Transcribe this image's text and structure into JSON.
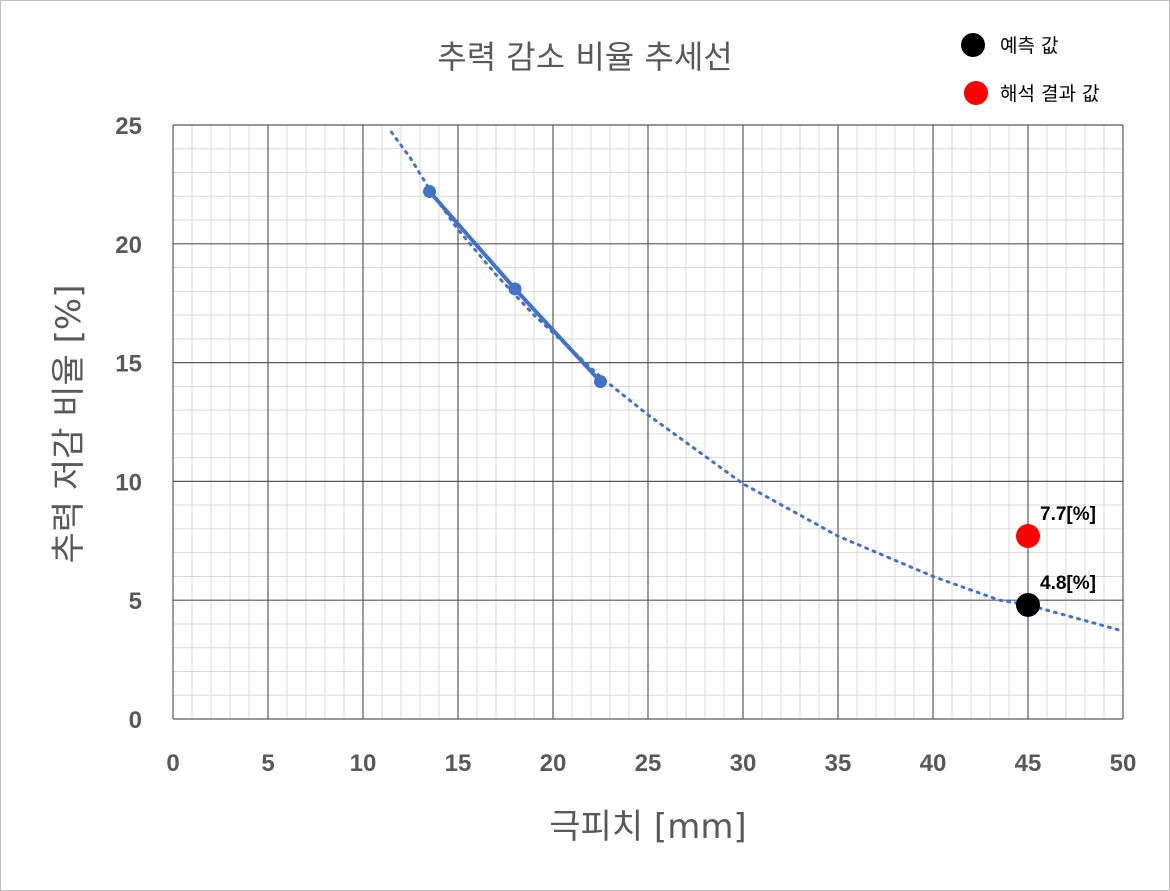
{
  "chart_data": {
    "type": "scatter",
    "title": "추력 감소 비율 추세선",
    "xlabel": "극피치 [mm]",
    "ylabel": "추력 저감 비율 [%]",
    "xlim": [
      0,
      50
    ],
    "ylim": [
      0,
      25
    ],
    "x_ticks": [
      0,
      5,
      10,
      15,
      20,
      25,
      30,
      35,
      40,
      45,
      50
    ],
    "y_ticks": [
      0,
      5,
      10,
      15,
      20,
      25
    ],
    "grid": true,
    "legend_position": "top-right",
    "series": [
      {
        "style": "line-markers",
        "color": "#4472c4",
        "x": [
          13.5,
          18,
          22.5
        ],
        "y": [
          22.2,
          18.1,
          14.2
        ]
      },
      {
        "style": "dotted-trendline",
        "color": "#4472c4",
        "x": [
          11.5,
          12.5,
          13.5,
          15,
          17,
          19,
          22.5,
          25,
          30,
          35,
          40,
          43.5,
          45,
          50
        ],
        "y": [
          24.7,
          23.6,
          22.3,
          20.6,
          18.7,
          17.0,
          14.4,
          12.8,
          9.9,
          7.7,
          6.0,
          5.0,
          4.8,
          3.7
        ]
      },
      {
        "name": "예측 값",
        "style": "marker",
        "color": "#000000",
        "x": [
          45
        ],
        "y": [
          4.8
        ],
        "annotations": [
          "4.8[%]"
        ]
      },
      {
        "name": "해석 결과 값",
        "style": "marker",
        "color": "#ff0000",
        "x": [
          45
        ],
        "y": [
          7.7
        ],
        "annotations": [
          "7.7[%]"
        ]
      }
    ]
  }
}
